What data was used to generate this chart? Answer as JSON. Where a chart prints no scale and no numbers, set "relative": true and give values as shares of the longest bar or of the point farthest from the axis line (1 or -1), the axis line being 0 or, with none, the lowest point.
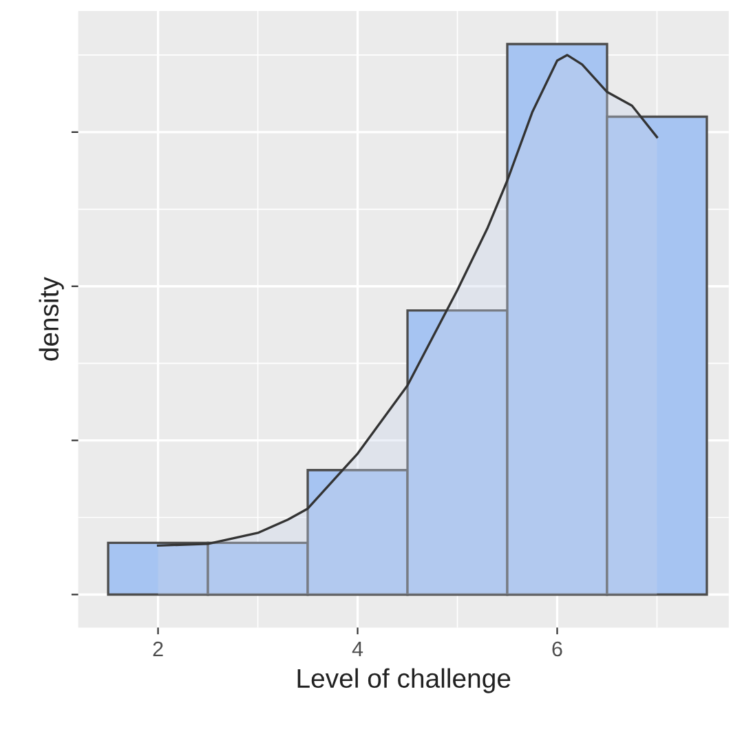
{
  "chart_data": {
    "type": "histogram",
    "xlabel": "Level of challenge",
    "ylabel": "density",
    "relative": true,
    "bins": [
      1.5,
      2.5,
      3.5,
      4.5,
      5.5,
      6.5,
      7.5
    ],
    "series": [
      {
        "color": "#a6c4f2",
        "values": [
          0.094,
          0.094,
          0.226,
          0.516,
          1.0,
          0.868
        ]
      },
      {
        "type": "area",
        "color": "#333333",
        "x": [
          2,
          2.5,
          3,
          3.3,
          3.5,
          4,
          4.5,
          5,
          5.3,
          5.5,
          5.75,
          6,
          6.1,
          6.25,
          6.5,
          6.75,
          7
        ],
        "values": [
          0.089,
          0.092,
          0.112,
          0.136,
          0.156,
          0.256,
          0.38,
          0.553,
          0.665,
          0.752,
          0.876,
          0.97,
          0.98,
          0.963,
          0.913,
          0.888,
          0.831
        ]
      }
    ],
    "xlim": [
      1.2,
      7.72
    ],
    "xticks": [
      2,
      4,
      6
    ],
    "grid": true
  }
}
